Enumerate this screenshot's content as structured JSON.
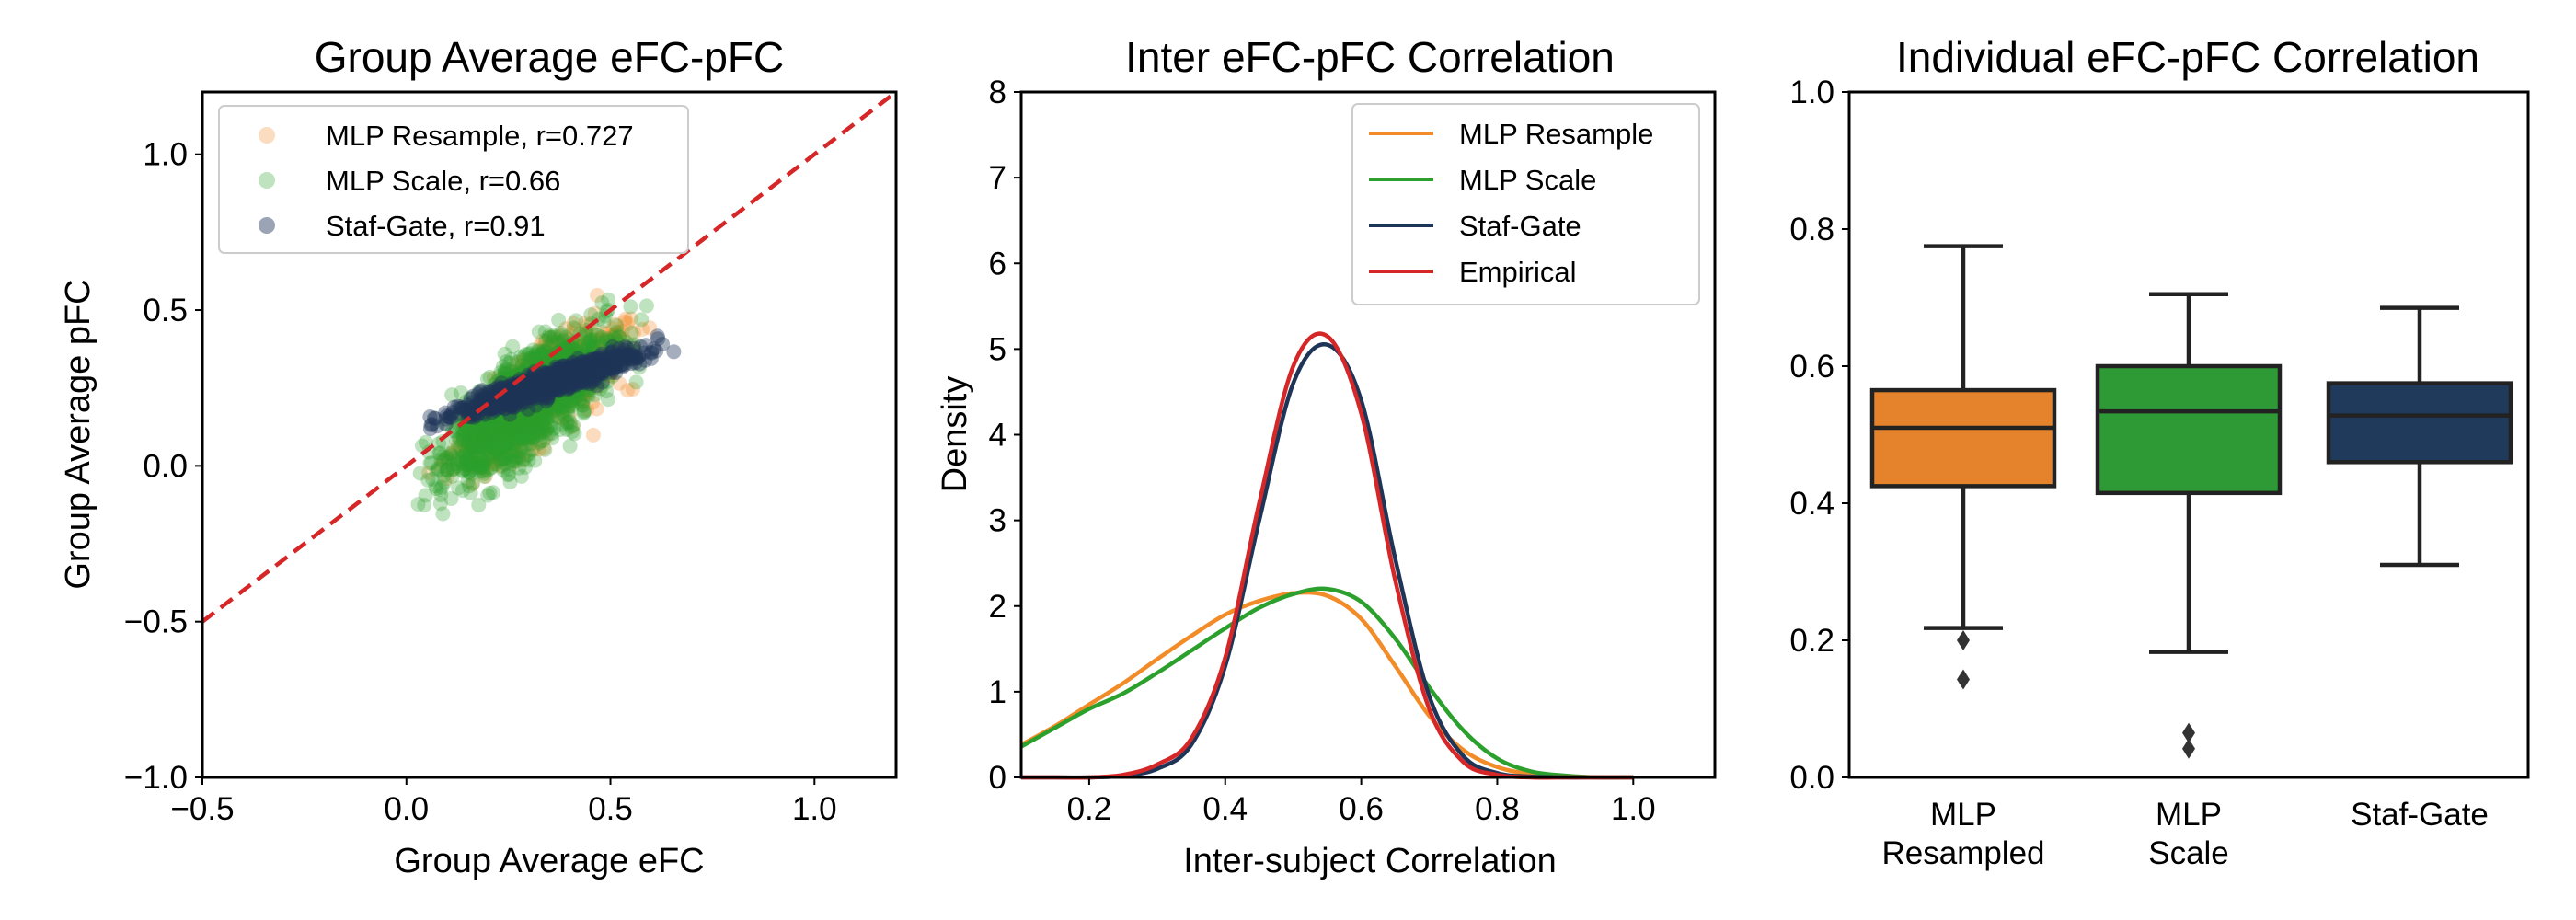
{
  "colors": {
    "mlp_resample": "#f28c28",
    "mlp_scale": "#2ca02c",
    "staf_gate": "#1f3558",
    "empirical": "#d62728",
    "identity_line": "#d62728",
    "box_orange": "#e5832d",
    "box_green": "#2e9a35",
    "box_navy": "#203a5c"
  },
  "chart_data": [
    {
      "type": "scatter",
      "title": "Group Average eFC-pFC",
      "xlabel": "Group Average eFC",
      "ylabel": "Group Average pFC",
      "xlim": [
        -0.5,
        1.2
      ],
      "ylim": [
        -1.0,
        1.2
      ],
      "xticks": [
        -0.5,
        0.0,
        0.5,
        1.0
      ],
      "xtick_labels": [
        "−0.5",
        "0.0",
        "0.5",
        "1.0"
      ],
      "yticks": [
        -1.0,
        -0.5,
        0.0,
        0.5,
        1.0
      ],
      "ytick_labels": [
        "−1.0",
        "−0.5",
        "0.0",
        "0.5",
        "1.0"
      ],
      "legend_position": "top-left",
      "identity_line": {
        "x": [
          -0.5,
          1.2
        ],
        "y": [
          -0.5,
          1.2
        ],
        "style": "dashed"
      },
      "series": [
        {
          "name": "MLP Resample, r=0.727",
          "color_key": "mlp_resample",
          "cluster": {
            "x_center": 0.33,
            "x_spread": 0.22,
            "slope": 0.88,
            "intercept": -0.06,
            "noise": 0.16,
            "count": 650
          }
        },
        {
          "name": "MLP Scale, r=0.66",
          "color_key": "mlp_scale",
          "cluster": {
            "x_center": 0.3,
            "x_spread": 0.23,
            "slope": 0.92,
            "intercept": -0.07,
            "noise": 0.18,
            "count": 1500
          }
        },
        {
          "name": "Staf-Gate, r=0.91",
          "color_key": "staf_gate",
          "cluster": {
            "x_center": 0.35,
            "x_spread": 0.24,
            "slope": 0.42,
            "intercept": 0.12,
            "noise": 0.045,
            "count": 1100
          }
        }
      ]
    },
    {
      "type": "line",
      "title": "Inter eFC-pFC Correlation",
      "xlabel": "Inter-subject Correlation",
      "ylabel": "Density",
      "xlim": [
        0.1,
        1.12
      ],
      "ylim": [
        0,
        8
      ],
      "xticks": [
        0.2,
        0.4,
        0.6,
        0.8,
        1.0
      ],
      "xtick_labels": [
        "0.2",
        "0.4",
        "0.6",
        "0.8",
        "1.0"
      ],
      "yticks": [
        0,
        1,
        2,
        3,
        4,
        5,
        6,
        7,
        8
      ],
      "ytick_labels": [
        "0",
        "1",
        "2",
        "3",
        "4",
        "5",
        "6",
        "7",
        "8"
      ],
      "legend_position": "top-right",
      "x": [
        0.1,
        0.15,
        0.2,
        0.25,
        0.3,
        0.35,
        0.4,
        0.45,
        0.5,
        0.55,
        0.6,
        0.65,
        0.7,
        0.75,
        0.8,
        0.85,
        0.9,
        0.95,
        1.0
      ],
      "series": [
        {
          "name": "MLP Resample",
          "color_key": "mlp_resample",
          "values": [
            0.38,
            0.6,
            0.85,
            1.1,
            1.38,
            1.65,
            1.9,
            2.06,
            2.15,
            2.12,
            1.85,
            1.3,
            0.72,
            0.32,
            0.12,
            0.04,
            0.01,
            0.0,
            0.0
          ]
        },
        {
          "name": "MLP Scale",
          "color_key": "mlp_scale",
          "values": [
            0.36,
            0.58,
            0.8,
            0.98,
            1.22,
            1.48,
            1.74,
            1.98,
            2.14,
            2.2,
            2.05,
            1.62,
            1.05,
            0.55,
            0.22,
            0.07,
            0.02,
            0.0,
            0.0
          ]
        },
        {
          "name": "Staf-Gate",
          "color_key": "staf_gate",
          "values": [
            0.0,
            0.0,
            0.0,
            0.02,
            0.1,
            0.38,
            1.3,
            3.0,
            4.6,
            5.05,
            4.4,
            2.55,
            0.95,
            0.25,
            0.05,
            0.01,
            0.0,
            0.0,
            0.0
          ]
        },
        {
          "name": "Empirical",
          "color_key": "empirical",
          "values": [
            0.0,
            0.0,
            0.0,
            0.03,
            0.15,
            0.45,
            1.4,
            3.2,
            4.8,
            5.15,
            4.25,
            2.3,
            0.8,
            0.18,
            0.03,
            0.0,
            0.0,
            0.0,
            0.0
          ]
        }
      ]
    },
    {
      "type": "box",
      "title": "Individual eFC-pFC Correlation",
      "ylim": [
        0,
        1.0
      ],
      "yticks": [
        0.0,
        0.2,
        0.4,
        0.6,
        0.8,
        1.0
      ],
      "ytick_labels": [
        "0.0",
        "0.2",
        "0.4",
        "0.6",
        "0.8",
        "1.0"
      ],
      "categories": [
        [
          "MLP",
          "Resampled"
        ],
        [
          "MLP",
          "Scale"
        ],
        [
          "Staf-Gate"
        ]
      ],
      "boxes": [
        {
          "color_key": "box_orange",
          "q1": 0.425,
          "median": 0.51,
          "q3": 0.565,
          "whisker_low": 0.218,
          "whisker_high": 0.775,
          "outliers": [
            0.2,
            0.143
          ]
        },
        {
          "color_key": "box_green",
          "q1": 0.415,
          "median": 0.534,
          "q3": 0.6,
          "whisker_low": 0.183,
          "whisker_high": 0.705,
          "outliers": [
            0.065,
            0.042
          ]
        },
        {
          "color_key": "box_navy",
          "q1": 0.46,
          "median": 0.528,
          "q3": 0.575,
          "whisker_low": 0.31,
          "whisker_high": 0.685,
          "outliers": []
        }
      ]
    }
  ]
}
